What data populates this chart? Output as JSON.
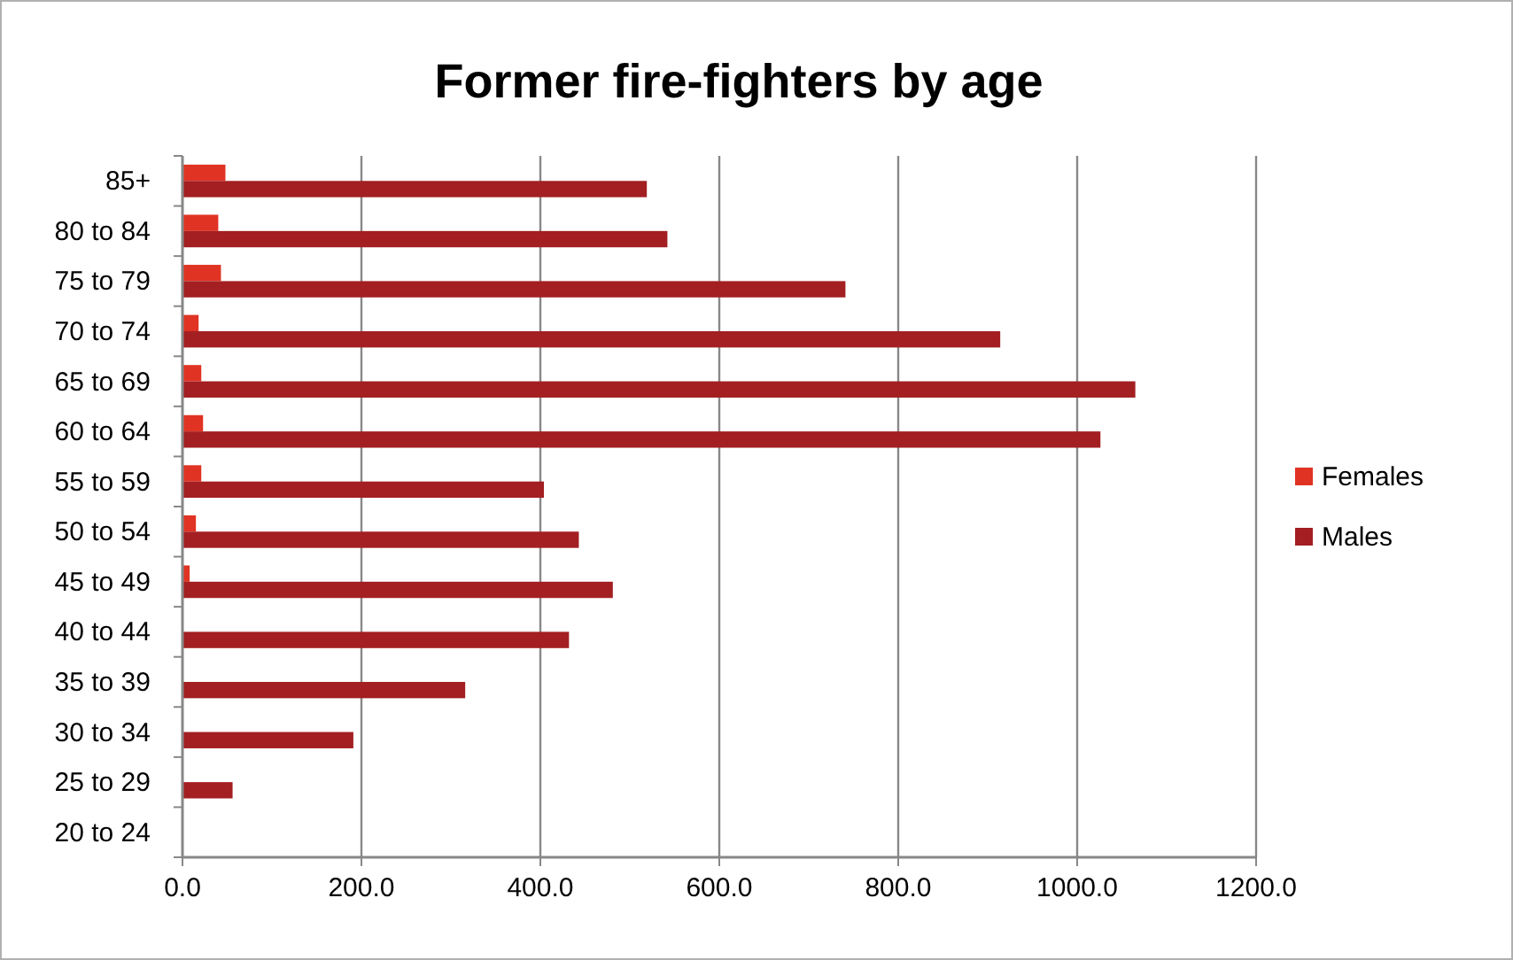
{
  "chart_data": {
    "type": "bar",
    "orientation": "horizontal",
    "title": "Former fire-fighters by age",
    "categories": [
      "85+",
      "80 to 84",
      "75 to 79",
      "70 to 74",
      "65 to 69",
      "60 to 64",
      "55 to 59",
      "50 to 54",
      "45 to 49",
      "40 to 44",
      "35 to 39",
      "30 to 34",
      "25 to 29",
      "20 to 24"
    ],
    "series": [
      {
        "name": "Females",
        "color": "#e03323",
        "values": [
          48,
          40,
          43,
          18,
          21,
          23,
          21,
          15,
          8,
          1,
          0,
          0,
          0,
          0
        ]
      },
      {
        "name": "Males",
        "color": "#a31f22",
        "values": [
          519,
          542,
          741,
          914,
          1065,
          1026,
          404,
          443,
          481,
          432,
          316,
          191,
          56,
          0
        ]
      }
    ],
    "xlim": [
      0,
      1200
    ],
    "xticks": [
      {
        "value": 0,
        "label": "0.0"
      },
      {
        "value": 200,
        "label": "200.0"
      },
      {
        "value": 400,
        "label": "400.0"
      },
      {
        "value": 600,
        "label": "600.0"
      },
      {
        "value": 800,
        "label": "800.0"
      },
      {
        "value": 1000,
        "label": "1000.0"
      },
      {
        "value": 1200,
        "label": "1200.0"
      }
    ],
    "grid": "x",
    "legend": "right"
  }
}
